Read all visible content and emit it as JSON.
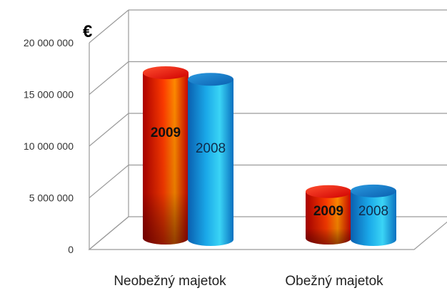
{
  "chart_data": {
    "type": "bar",
    "unit_label": "€",
    "categories": [
      "Neobežný majetok",
      "Obežný majetok"
    ],
    "series": [
      {
        "name": "2009",
        "values": [
          16000000,
          4500000
        ],
        "color": "#ff2a00"
      },
      {
        "name": "2008",
        "values": [
          15500000,
          4700000
        ],
        "color": "#1a9be0"
      }
    ],
    "bar_labels": [
      [
        "2009",
        "2008"
      ],
      [
        "2009",
        "2008"
      ]
    ],
    "ylim": [
      0,
      20000000
    ],
    "yticks": [
      0,
      5000000,
      10000000,
      15000000,
      20000000
    ],
    "ytick_labels": [
      "0",
      "5 000 000",
      "10 000 000",
      "15 000 000",
      "20 000 000"
    ],
    "grid": true,
    "legend": "none",
    "style": "3d-cylinder"
  }
}
